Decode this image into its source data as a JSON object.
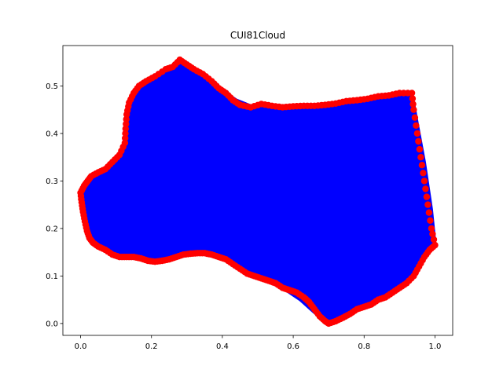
{
  "chart_data": {
    "type": "scatter",
    "title": "CUI81Cloud",
    "xlabel": "",
    "ylabel": "",
    "xlim": [
      -0.05,
      1.05
    ],
    "ylim": [
      -0.025,
      0.585
    ],
    "xticks": [
      "0.0",
      "0.2",
      "0.4",
      "0.6",
      "0.8",
      "1.0"
    ],
    "xtick_values": [
      0.0,
      0.2,
      0.4,
      0.6,
      0.8,
      1.0
    ],
    "yticks": [
      "0.0",
      "0.1",
      "0.2",
      "0.3",
      "0.4",
      "0.5"
    ],
    "ytick_values": [
      0.0,
      0.1,
      0.2,
      0.3,
      0.4,
      0.5
    ],
    "grid": false,
    "legend": "none",
    "colors": {
      "fill": "#0000ff",
      "boundary": "#ff0000"
    },
    "series": [
      {
        "role": "interior-fill",
        "values": [
          [
            0.0,
            0.275
          ],
          [
            0.015,
            0.3
          ],
          [
            0.03,
            0.31
          ],
          [
            0.06,
            0.32
          ],
          [
            0.09,
            0.34
          ],
          [
            0.12,
            0.36
          ],
          [
            0.125,
            0.39
          ],
          [
            0.13,
            0.42
          ],
          [
            0.135,
            0.45
          ],
          [
            0.15,
            0.48
          ],
          [
            0.17,
            0.5
          ],
          [
            0.2,
            0.515
          ],
          [
            0.23,
            0.53
          ],
          [
            0.27,
            0.548
          ],
          [
            0.3,
            0.54
          ],
          [
            0.33,
            0.525
          ],
          [
            0.36,
            0.51
          ],
          [
            0.4,
            0.49
          ],
          [
            0.44,
            0.47
          ],
          [
            0.48,
            0.458
          ],
          [
            0.52,
            0.46
          ],
          [
            0.56,
            0.458
          ],
          [
            0.6,
            0.458
          ],
          [
            0.65,
            0.458
          ],
          [
            0.7,
            0.46
          ],
          [
            0.75,
            0.465
          ],
          [
            0.8,
            0.47
          ],
          [
            0.85,
            0.477
          ],
          [
            0.9,
            0.482
          ],
          [
            0.935,
            0.483
          ],
          [
            0.95,
            0.42
          ],
          [
            0.97,
            0.34
          ],
          [
            0.99,
            0.24
          ],
          [
            1.0,
            0.165
          ],
          [
            0.98,
            0.15
          ],
          [
            0.95,
            0.11
          ],
          [
            0.9,
            0.08
          ],
          [
            0.85,
            0.06
          ],
          [
            0.8,
            0.04
          ],
          [
            0.75,
            0.02
          ],
          [
            0.7,
            0.0
          ],
          [
            0.68,
            0.01
          ],
          [
            0.65,
            0.03
          ],
          [
            0.62,
            0.05
          ],
          [
            0.58,
            0.07
          ],
          [
            0.54,
            0.085
          ],
          [
            0.5,
            0.095
          ],
          [
            0.46,
            0.11
          ],
          [
            0.42,
            0.13
          ],
          [
            0.38,
            0.145
          ],
          [
            0.34,
            0.147
          ],
          [
            0.3,
            0.145
          ],
          [
            0.26,
            0.135
          ],
          [
            0.22,
            0.13
          ],
          [
            0.18,
            0.135
          ],
          [
            0.14,
            0.14
          ],
          [
            0.1,
            0.14
          ],
          [
            0.07,
            0.155
          ],
          [
            0.04,
            0.165
          ],
          [
            0.02,
            0.185
          ],
          [
            0.01,
            0.21
          ],
          [
            0.005,
            0.24
          ]
        ]
      },
      {
        "role": "boundary",
        "values": [
          [
            0.0,
            0.275
          ],
          [
            0.01,
            0.29
          ],
          [
            0.02,
            0.3
          ],
          [
            0.03,
            0.31
          ],
          [
            0.05,
            0.318
          ],
          [
            0.07,
            0.325
          ],
          [
            0.09,
            0.34
          ],
          [
            0.11,
            0.355
          ],
          [
            0.125,
            0.38
          ],
          [
            0.127,
            0.41
          ],
          [
            0.13,
            0.44
          ],
          [
            0.137,
            0.465
          ],
          [
            0.15,
            0.485
          ],
          [
            0.165,
            0.5
          ],
          [
            0.185,
            0.51
          ],
          [
            0.21,
            0.52
          ],
          [
            0.24,
            0.535
          ],
          [
            0.26,
            0.54
          ],
          [
            0.28,
            0.555
          ],
          [
            0.3,
            0.545
          ],
          [
            0.32,
            0.535
          ],
          [
            0.345,
            0.525
          ],
          [
            0.37,
            0.51
          ],
          [
            0.39,
            0.495
          ],
          [
            0.41,
            0.485
          ],
          [
            0.43,
            0.47
          ],
          [
            0.45,
            0.46
          ],
          [
            0.48,
            0.455
          ],
          [
            0.51,
            0.462
          ],
          [
            0.54,
            0.458
          ],
          [
            0.57,
            0.455
          ],
          [
            0.6,
            0.457
          ],
          [
            0.63,
            0.458
          ],
          [
            0.66,
            0.458
          ],
          [
            0.69,
            0.46
          ],
          [
            0.72,
            0.463
          ],
          [
            0.75,
            0.468
          ],
          [
            0.78,
            0.47
          ],
          [
            0.81,
            0.473
          ],
          [
            0.84,
            0.478
          ],
          [
            0.87,
            0.48
          ],
          [
            0.9,
            0.485
          ],
          [
            0.935,
            0.485
          ],
          [
            0.94,
            0.45
          ],
          [
            0.95,
            0.4
          ],
          [
            0.96,
            0.35
          ],
          [
            0.97,
            0.3
          ],
          [
            0.98,
            0.25
          ],
          [
            0.99,
            0.2
          ],
          [
            1.0,
            0.165
          ],
          [
            0.985,
            0.155
          ],
          [
            0.97,
            0.14
          ],
          [
            0.955,
            0.12
          ],
          [
            0.94,
            0.1
          ],
          [
            0.92,
            0.085
          ],
          [
            0.9,
            0.075
          ],
          [
            0.88,
            0.065
          ],
          [
            0.86,
            0.055
          ],
          [
            0.84,
            0.05
          ],
          [
            0.82,
            0.04
          ],
          [
            0.8,
            0.035
          ],
          [
            0.78,
            0.03
          ],
          [
            0.76,
            0.02
          ],
          [
            0.74,
            0.012
          ],
          [
            0.72,
            0.005
          ],
          [
            0.7,
            0.0
          ],
          [
            0.69,
            0.005
          ],
          [
            0.675,
            0.015
          ],
          [
            0.66,
            0.03
          ],
          [
            0.645,
            0.045
          ],
          [
            0.63,
            0.055
          ],
          [
            0.61,
            0.065
          ],
          [
            0.59,
            0.07
          ],
          [
            0.57,
            0.075
          ],
          [
            0.55,
            0.085
          ],
          [
            0.53,
            0.09
          ],
          [
            0.51,
            0.095
          ],
          [
            0.49,
            0.1
          ],
          [
            0.47,
            0.105
          ],
          [
            0.45,
            0.115
          ],
          [
            0.43,
            0.125
          ],
          [
            0.41,
            0.135
          ],
          [
            0.39,
            0.14
          ],
          [
            0.37,
            0.145
          ],
          [
            0.35,
            0.148
          ],
          [
            0.33,
            0.148
          ],
          [
            0.31,
            0.147
          ],
          [
            0.29,
            0.145
          ],
          [
            0.27,
            0.14
          ],
          [
            0.25,
            0.135
          ],
          [
            0.23,
            0.132
          ],
          [
            0.21,
            0.13
          ],
          [
            0.19,
            0.132
          ],
          [
            0.17,
            0.137
          ],
          [
            0.15,
            0.14
          ],
          [
            0.13,
            0.14
          ],
          [
            0.11,
            0.14
          ],
          [
            0.09,
            0.145
          ],
          [
            0.07,
            0.155
          ],
          [
            0.05,
            0.162
          ],
          [
            0.035,
            0.17
          ],
          [
            0.025,
            0.18
          ],
          [
            0.018,
            0.195
          ],
          [
            0.012,
            0.215
          ],
          [
            0.007,
            0.235
          ],
          [
            0.003,
            0.255
          ]
        ]
      }
    ]
  }
}
